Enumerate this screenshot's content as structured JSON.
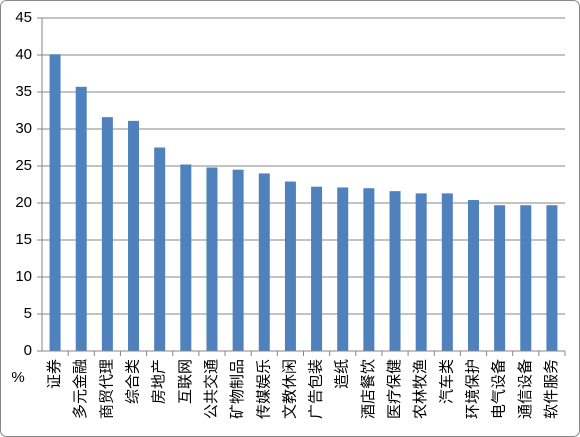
{
  "chart_data": {
    "type": "bar",
    "y_label": "%",
    "categories": [
      "证券",
      "多元金融",
      "商贸代理",
      "综合类",
      "房地产",
      "互联网",
      "公共交通",
      "矿物制品",
      "传媒娱乐",
      "文教休闲",
      "广告包装",
      "造纸",
      "酒店餐饮",
      "医疗保健",
      "农林牧渔",
      "汽车类",
      "环境保护",
      "电气设备",
      "通信设备",
      "软件服务"
    ],
    "values": [
      40.1,
      35.7,
      31.6,
      31.1,
      27.5,
      25.2,
      24.8,
      24.5,
      24.0,
      22.9,
      22.2,
      22.1,
      22.0,
      21.6,
      21.3,
      21.3,
      20.4,
      19.7,
      19.7,
      19.7
    ],
    "color": "#4f81bd",
    "ylim": [
      0,
      45
    ],
    "yticks": [
      0,
      5,
      10,
      15,
      20,
      25,
      30,
      35,
      40,
      45
    ],
    "grid": true
  }
}
